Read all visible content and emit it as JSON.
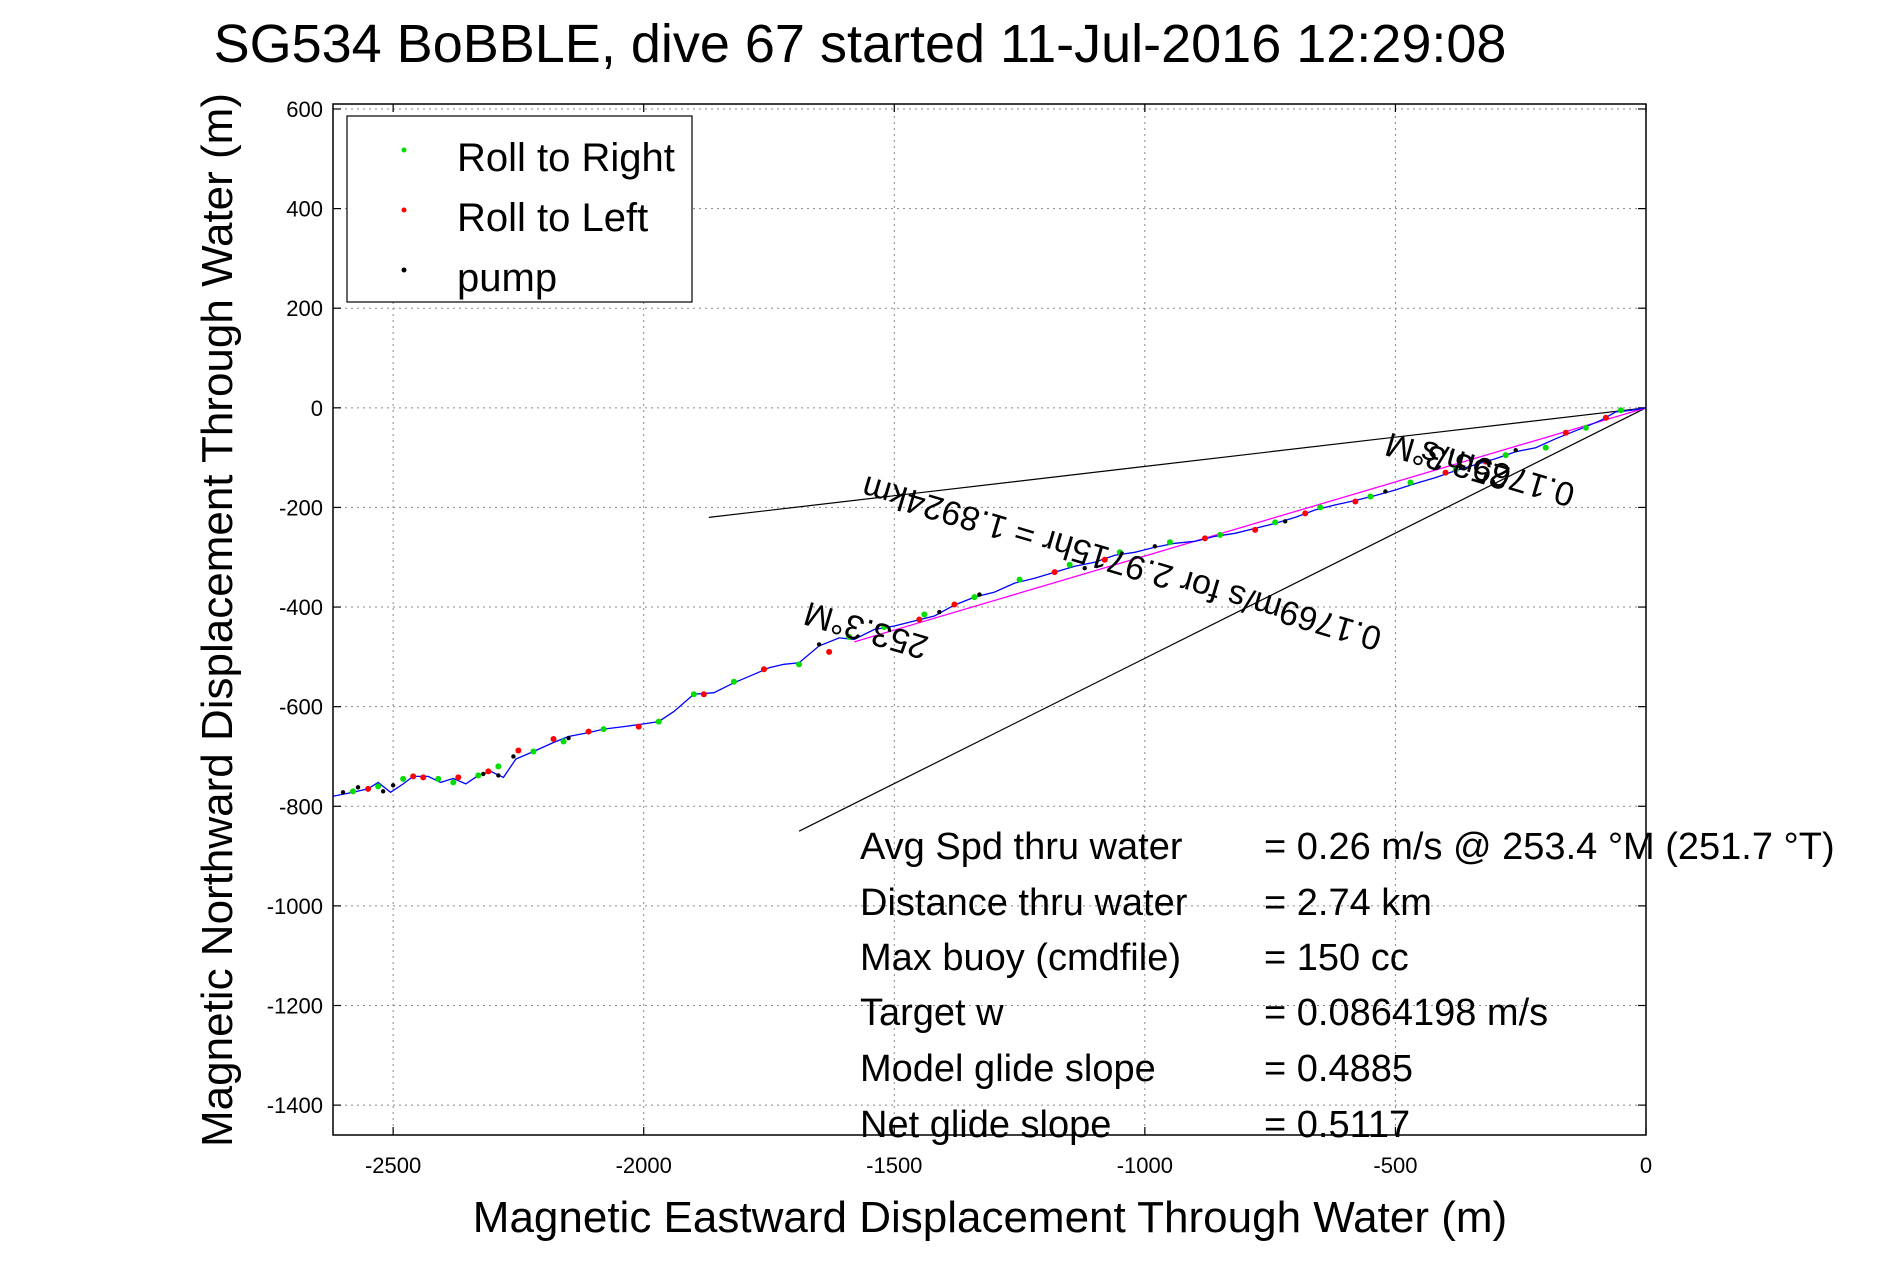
{
  "chart_data": {
    "type": "scatter",
    "title": "SG534 BoBBLE, dive 67 started 11-Jul-2016 12:29:08",
    "xlabel": "Magnetic Eastward Displacement Through Water (m)",
    "ylabel": "Magnetic Northward Displacement Through Water (m)",
    "xlim": [
      -2620,
      0
    ],
    "ylim": [
      -1460,
      610
    ],
    "xticks": [
      -2500,
      -2000,
      -1500,
      -1000,
      -500,
      0
    ],
    "yticks": [
      600,
      400,
      200,
      0,
      -200,
      -400,
      -600,
      -800,
      -1000,
      -1200,
      -1400
    ],
    "grid": true,
    "legend_position": "top-left",
    "colors": {
      "roll_right": "#00dd00",
      "roll_left": "#ff0000",
      "pump": "#000000",
      "track": "#0000ff",
      "mean": "#ff00ff",
      "cone": "#000000"
    },
    "series": [
      {
        "name": "Roll to Right",
        "points": [
          [
            -2580,
            -770
          ],
          [
            -2530,
            -760
          ],
          [
            -2480,
            -745
          ],
          [
            -2410,
            -745
          ],
          [
            -2380,
            -752
          ],
          [
            -2330,
            -738
          ],
          [
            -2290,
            -720
          ],
          [
            -2220,
            -690
          ],
          [
            -2160,
            -670
          ],
          [
            -2080,
            -645
          ],
          [
            -1970,
            -630
          ],
          [
            -1900,
            -575
          ],
          [
            -1820,
            -550
          ],
          [
            -1690,
            -515
          ],
          [
            -1590,
            -460
          ],
          [
            -1520,
            -440
          ],
          [
            -1440,
            -415
          ],
          [
            -1340,
            -380
          ],
          [
            -1250,
            -345
          ],
          [
            -1150,
            -315
          ],
          [
            -1050,
            -290
          ],
          [
            -950,
            -270
          ],
          [
            -850,
            -255
          ],
          [
            -740,
            -230
          ],
          [
            -650,
            -200
          ],
          [
            -550,
            -178
          ],
          [
            -470,
            -150
          ],
          [
            -380,
            -125
          ],
          [
            -280,
            -95
          ],
          [
            -200,
            -80
          ],
          [
            -120,
            -40
          ],
          [
            -50,
            -5
          ]
        ]
      },
      {
        "name": "Roll to Left",
        "points": [
          [
            -2550,
            -765
          ],
          [
            -2460,
            -740
          ],
          [
            -2440,
            -742
          ],
          [
            -2370,
            -742
          ],
          [
            -2310,
            -730
          ],
          [
            -2250,
            -688
          ],
          [
            -2180,
            -665
          ],
          [
            -2110,
            -650
          ],
          [
            -2010,
            -640
          ],
          [
            -1880,
            -575
          ],
          [
            -1760,
            -525
          ],
          [
            -1630,
            -490
          ],
          [
            -1450,
            -425
          ],
          [
            -1380,
            -395
          ],
          [
            -1180,
            -330
          ],
          [
            -1080,
            -305
          ],
          [
            -880,
            -262
          ],
          [
            -780,
            -245
          ],
          [
            -680,
            -212
          ],
          [
            -580,
            -188
          ],
          [
            -400,
            -130
          ],
          [
            -320,
            -108
          ],
          [
            -160,
            -50
          ],
          [
            -80,
            -20
          ]
        ]
      },
      {
        "name": "pump",
        "points": [
          [
            -2600,
            -772
          ],
          [
            -2570,
            -762
          ],
          [
            -2520,
            -770
          ],
          [
            -2500,
            -758
          ],
          [
            -2320,
            -735
          ],
          [
            -2290,
            -738
          ],
          [
            -2260,
            -700
          ],
          [
            -2150,
            -663
          ],
          [
            -1650,
            -475
          ],
          [
            -1410,
            -410
          ],
          [
            -1330,
            -375
          ],
          [
            -1120,
            -322
          ],
          [
            -980,
            -278
          ],
          [
            -720,
            -228
          ],
          [
            -520,
            -168
          ],
          [
            -260,
            -85
          ]
        ]
      }
    ],
    "track": [
      [
        -2620,
        -780
      ],
      [
        -2580,
        -772
      ],
      [
        -2550,
        -765
      ],
      [
        -2530,
        -752
      ],
      [
        -2505,
        -772
      ],
      [
        -2480,
        -755
      ],
      [
        -2460,
        -740
      ],
      [
        -2430,
        -740
      ],
      [
        -2405,
        -752
      ],
      [
        -2380,
        -744
      ],
      [
        -2355,
        -755
      ],
      [
        -2330,
        -738
      ],
      [
        -2305,
        -730
      ],
      [
        -2280,
        -742
      ],
      [
        -2255,
        -705
      ],
      [
        -2220,
        -690
      ],
      [
        -2180,
        -672
      ],
      [
        -2150,
        -660
      ],
      [
        -2110,
        -652
      ],
      [
        -2080,
        -645
      ],
      [
        -2040,
        -640
      ],
      [
        -2010,
        -636
      ],
      [
        -1970,
        -630
      ],
      [
        -1940,
        -610
      ],
      [
        -1900,
        -575
      ],
      [
        -1860,
        -572
      ],
      [
        -1820,
        -552
      ],
      [
        -1780,
        -535
      ],
      [
        -1750,
        -522
      ],
      [
        -1720,
        -515
      ],
      [
        -1690,
        -512
      ],
      [
        -1650,
        -478
      ],
      [
        -1610,
        -462
      ],
      [
        -1580,
        -465
      ],
      [
        -1540,
        -445
      ],
      [
        -1500,
        -438
      ],
      [
        -1460,
        -428
      ],
      [
        -1420,
        -418
      ],
      [
        -1380,
        -396
      ],
      [
        -1340,
        -380
      ],
      [
        -1300,
        -370
      ],
      [
        -1260,
        -352
      ],
      [
        -1220,
        -342
      ],
      [
        -1180,
        -330
      ],
      [
        -1140,
        -318
      ],
      [
        -1100,
        -310
      ],
      [
        -1060,
        -296
      ],
      [
        -1020,
        -290
      ],
      [
        -980,
        -280
      ],
      [
        -940,
        -272
      ],
      [
        -900,
        -268
      ],
      [
        -860,
        -258
      ],
      [
        -820,
        -252
      ],
      [
        -780,
        -242
      ],
      [
        -740,
        -232
      ],
      [
        -700,
        -220
      ],
      [
        -660,
        -205
      ],
      [
        -620,
        -195
      ],
      [
        -580,
        -186
      ],
      [
        -540,
        -176
      ],
      [
        -500,
        -165
      ],
      [
        -460,
        -152
      ],
      [
        -420,
        -140
      ],
      [
        -380,
        -126
      ],
      [
        -340,
        -114
      ],
      [
        -300,
        -102
      ],
      [
        -260,
        -88
      ],
      [
        -220,
        -80
      ],
      [
        -180,
        -62
      ],
      [
        -150,
        -50
      ],
      [
        -120,
        -38
      ],
      [
        -90,
        -25
      ],
      [
        -60,
        -8
      ],
      [
        -30,
        -5
      ],
      [
        0,
        0
      ]
    ],
    "mean_line": {
      "from": [
        0,
        0
      ],
      "to": [
        -1580,
        -470
      ]
    },
    "cone_lines": [
      {
        "from": [
          0,
          0
        ],
        "to": [
          -1870,
          -220
        ]
      },
      {
        "from": [
          0,
          0
        ],
        "to": [
          -1690,
          -850
        ]
      }
    ],
    "track_labels": [
      {
        "text": "253.3°M",
        "x": -1550,
        "y": -425,
        "angle": 16.5
      },
      {
        "text": "0.1769m/s for 2.9715hr = 1.8924km",
        "x": -1040,
        "y": -290,
        "angle": 16.5
      },
      {
        "text": "253.3°M",
        "x": -390,
        "y": -85,
        "angle": 16.5
      },
      {
        "text": "0.1769m/s",
        "x": -290,
        "y": -110,
        "angle": 16.5
      }
    ],
    "annotations": [
      {
        "label": "Avg Spd thru water",
        "value": "=  0.26 m/s @ 253.4 °M (251.7 °T)"
      },
      {
        "label": "Distance thru water",
        "value": "=  2.74 km"
      },
      {
        "label": "Max buoy (cmdfile)",
        "value": "= 150 cc"
      },
      {
        "label": "Target w",
        "value": "= 0.0864198 m/s"
      },
      {
        "label": "Model glide slope",
        "value": "= 0.4885"
      },
      {
        "label": "Net glide slope",
        "value": "= 0.5117"
      }
    ]
  }
}
